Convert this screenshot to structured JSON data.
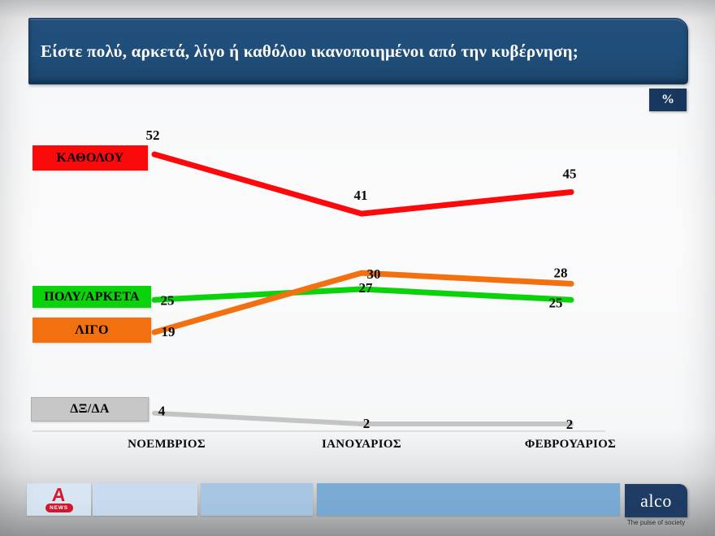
{
  "title": "Είστε πολύ, αρκετά, λίγο ή καθόλου ικανοποιημένοι από την κυβέρνηση;",
  "unit_badge": "%",
  "chart_data": {
    "type": "line",
    "categories": [
      "ΝΟΕΜΒΡΙΟΣ",
      "ΙΑΝΟΥΑΡΙΟΣ",
      "ΦΕΒΡΟΥΑΡΙΟΣ"
    ],
    "series": [
      {
        "name": "ΚΑΘΟΛΟΥ",
        "color": "#fa0a0a",
        "values": [
          52,
          41,
          45
        ]
      },
      {
        "name": "ΠΟΛΥ/ΑΡΚΕΤΑ",
        "color": "#0bd30b",
        "values": [
          25,
          27,
          25
        ]
      },
      {
        "name": "ΛΙΓΟ",
        "color": "#f2700f",
        "values": [
          19,
          30,
          28
        ]
      },
      {
        "name": "ΔΞ/ΔΑ",
        "color": "#c4c4c4",
        "values": [
          4,
          2,
          2
        ]
      }
    ],
    "unit": "%",
    "title": "Είστε πολύ, αρκετά, λίγο ή καθόλου ικανοποιημένοι από την κυβέρνηση;",
    "xlabel": "",
    "ylabel": "",
    "grid": false,
    "legend_position": "left",
    "ylim": [
      0,
      60
    ]
  },
  "colors": {
    "header_bg": "#1f4e79",
    "badge_bg": "#17375e",
    "axis_line": "#d6d6d6",
    "value_label": "#0a0a0a"
  },
  "footer": {
    "alpha_logo": {
      "letter": "A",
      "badge": "NEWS",
      "color": "#d6172b"
    },
    "alco_logo": {
      "name": "alco",
      "tagline": "The pulse of society",
      "bg": "#1e3c64"
    }
  }
}
